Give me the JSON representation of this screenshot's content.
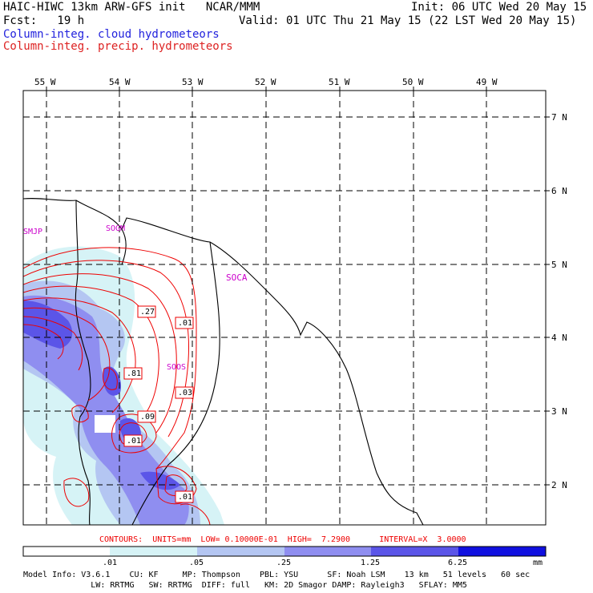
{
  "header": {
    "model_title": "HAIC-HIWC 13km ARW-GFS init   NCAR/MMM",
    "init": "Init: 06 UTC Wed 20 May 15",
    "fcst": "Fcst:   19 h",
    "valid": "Valid: 01 UTC Thu 21 May 15 (22 LST Wed 20 May 15)",
    "field_cloud": "Column-integ. cloud hydrometeors",
    "field_precip": "Column-integ. precip. hydrometeors"
  },
  "colors": {
    "cloud_label": "#2222dd",
    "precip_label": "#dd2222",
    "contour": "#ee0000",
    "station": "#cc00cc",
    "fill_levels": [
      "#ffffff",
      "#d6f3f6",
      "#b4c6f2",
      "#8f8ef0",
      "#5b55e8",
      "#1010e0"
    ]
  },
  "map": {
    "lon_labels": [
      "55 W",
      "54 W",
      "53 W",
      "52 W",
      "51 W",
      "50 W",
      "49 W"
    ],
    "lat_labels": [
      "7 N",
      "6 N",
      "5 N",
      "4 N",
      "3 N",
      "2 N"
    ],
    "stations": [
      "SMJP",
      "SOGM",
      "SOCA",
      "SOOS"
    ],
    "contour_labels": [
      ".27",
      ".01",
      ".81",
      ".03",
      ".09",
      ".01",
      ".01"
    ]
  },
  "contour_info": {
    "text": "CONTOURS:  UNITS=mm  LOW= 0.10000E-01  HIGH=  7.2900      INTERVAL=X  3.0000"
  },
  "colorbar": {
    "tick_labels": [
      ".01",
      ".05",
      ".25",
      "1.25",
      "6.25"
    ],
    "units": "mm"
  },
  "footer": {
    "line1": "Model Info: V3.6.1    CU: KF     MP: Thompson    PBL: YSU      SF: Noah LSM    13 km   51 levels   60 sec",
    "line2": "              LW: RRTMG   SW: RRTMG  DIFF: full   KM: 2D Smagor DAMP: Rayleigh3   SFLAY: MM5"
  }
}
